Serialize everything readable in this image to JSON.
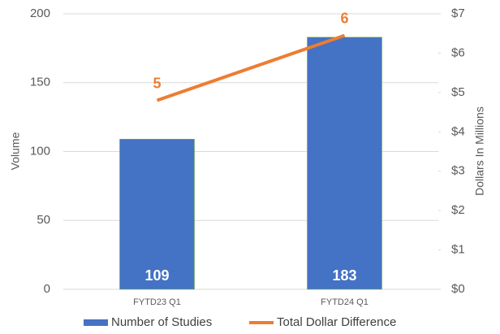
{
  "chart_data": {
    "type": "bar",
    "categories": [
      "FYTD23 Q1",
      "FYTD24 Q1"
    ],
    "series": [
      {
        "name": "Number of Studies",
        "type": "bar",
        "color": "#4472c4",
        "values": [
          109,
          183
        ]
      },
      {
        "name": "Total Dollar Difference",
        "type": "line",
        "color": "#ed7d31",
        "axis": "y2",
        "values": [
          4.8,
          6.45
        ],
        "value_labels": [
          "5",
          "6"
        ]
      }
    ],
    "ylabel": "Volume",
    "y2label": "Dollars In Millions",
    "ylim": [
      0,
      200
    ],
    "yticks": [
      0,
      50,
      100,
      150,
      200
    ],
    "y2lim": [
      0,
      7
    ],
    "y2ticks": [
      {
        "value": 0,
        "label": "$0"
      },
      {
        "value": 1,
        "label": "$1"
      },
      {
        "value": 2,
        "label": "$2"
      },
      {
        "value": 3,
        "label": "$3"
      },
      {
        "value": 4,
        "label": "$4"
      },
      {
        "value": 5,
        "label": "$5"
      },
      {
        "value": 6,
        "label": "$6"
      },
      {
        "value": 7,
        "label": "$7"
      }
    ],
    "grid": true,
    "legend": "bottom"
  }
}
